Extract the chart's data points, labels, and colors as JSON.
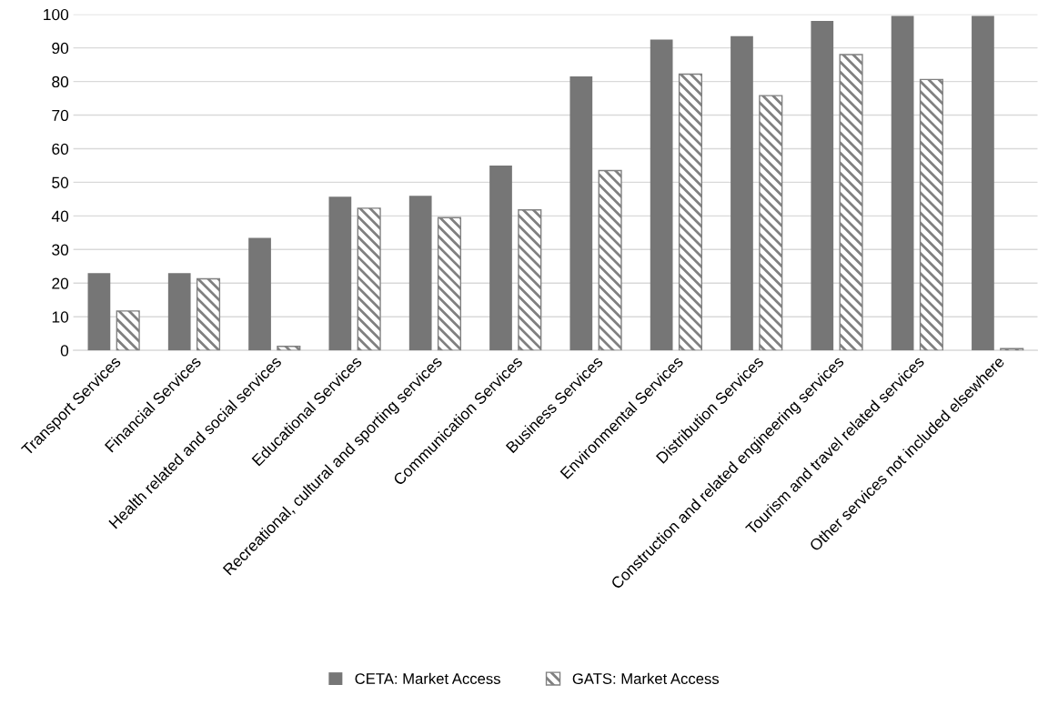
{
  "chart_data": {
    "type": "bar",
    "categories": [
      "Transport Services",
      "Financial Services",
      "Health related and social services",
      "Educational Services",
      "Recreational, cultural and sporting services",
      "Communication Services",
      "Business Services",
      "Environmental Services",
      "Distribution Services",
      "Construction and related engineering services",
      "Tourism and travel related services",
      "Other services not included elsewhere"
    ],
    "series": [
      {
        "name": "CETA: Market Access",
        "color": "#767676",
        "values": [
          23,
          23,
          33.5,
          45.7,
          46,
          55,
          81.5,
          92.5,
          93.5,
          98,
          99.5,
          99.5
        ]
      },
      {
        "name": "GATS: Market Access",
        "color": "#808080",
        "values": [
          11.7,
          21.3,
          1.2,
          42.3,
          39.5,
          41.8,
          53.5,
          82.2,
          75.8,
          88,
          80.6,
          0.5
        ]
      }
    ],
    "ylim": [
      0,
      100
    ],
    "yticks": [
      0,
      10,
      20,
      30,
      40,
      50,
      60,
      70,
      80,
      90,
      100
    ],
    "grid": "y",
    "legend": "bottom"
  }
}
